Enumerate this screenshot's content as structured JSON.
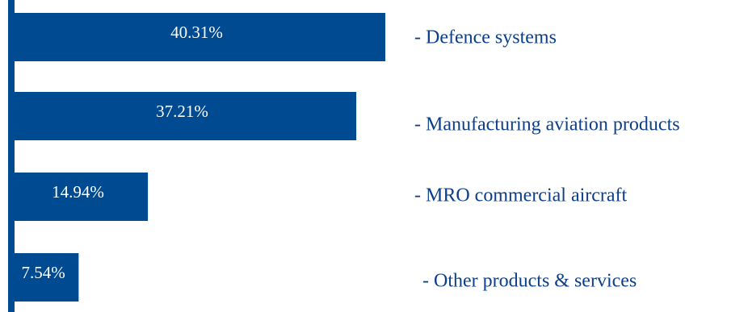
{
  "colors": {
    "bar": "#004a92",
    "bar_label": "#ffffff",
    "category_label": "#0b3f8a",
    "background": "#ffffff"
  },
  "chart_data": {
    "type": "bar",
    "orientation": "horizontal",
    "categories": [
      "- Defence systems",
      "- Manufacturing aviation products",
      "- MRO commercial aircraft",
      "- Other products & services"
    ],
    "values": [
      40.31,
      37.21,
      14.94,
      7.54
    ],
    "value_labels": [
      "40.31%",
      "37.21%",
      "14.94%",
      "7.54%"
    ],
    "xlim": [
      0,
      40.31
    ],
    "grid": false,
    "legend": "none",
    "category_label_placement": "right"
  }
}
